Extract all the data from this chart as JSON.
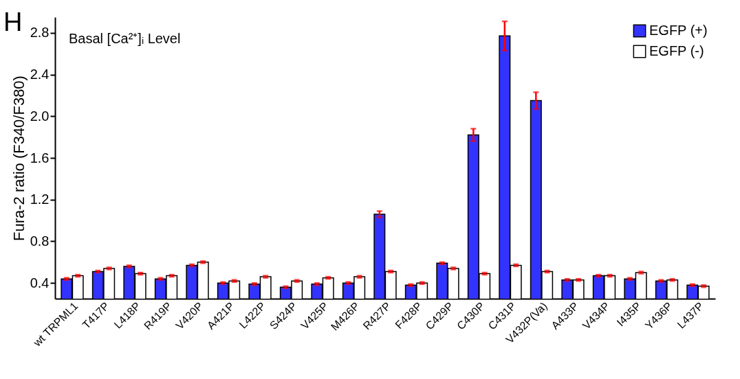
{
  "chart_data": {
    "type": "bar",
    "ylabel": "Fura-2 ratio (F340/F380)",
    "annotations": [
      "H",
      "Basal [Ca²⁺]ᵢ Level"
    ],
    "categories": [
      "wt TRPML1",
      "T417P",
      "L418P",
      "R419P",
      "V420P",
      "A421P",
      "L422P",
      "S424P",
      "V425P",
      "M426P",
      "R427P",
      "F428P",
      "C429P",
      "C430P",
      "C431P",
      "V432P(Va)",
      "A433P",
      "V434P",
      "I435P",
      "Y436P",
      "L437P"
    ],
    "series": [
      {
        "name": "EGFP (+)",
        "color": "#3333ff",
        "values": [
          0.44,
          0.51,
          0.56,
          0.44,
          0.57,
          0.4,
          0.39,
          0.36,
          0.39,
          0.4,
          1.06,
          0.38,
          0.59,
          1.82,
          2.77,
          2.15,
          0.43,
          0.47,
          0.44,
          0.42,
          0.38
        ],
        "errors": [
          0.01,
          0.01,
          0.01,
          0.01,
          0.01,
          0.01,
          0.01,
          0.01,
          0.01,
          0.01,
          0.03,
          0.01,
          0.01,
          0.06,
          0.14,
          0.08,
          0.01,
          0.01,
          0.01,
          0.01,
          0.01
        ]
      },
      {
        "name": "EGFP (-)",
        "color": "#ffffff",
        "values": [
          0.47,
          0.54,
          0.49,
          0.47,
          0.6,
          0.42,
          0.46,
          0.42,
          0.45,
          0.46,
          0.51,
          0.4,
          0.54,
          0.49,
          0.57,
          0.51,
          0.43,
          0.47,
          0.5,
          0.43,
          0.37
        ],
        "errors": [
          0.01,
          0.01,
          0.01,
          0.01,
          0.01,
          0.01,
          0.01,
          0.01,
          0.01,
          0.01,
          0.01,
          0.01,
          0.01,
          0.01,
          0.01,
          0.01,
          0.01,
          0.01,
          0.01,
          0.01,
          0.01
        ]
      }
    ],
    "ylim": [
      0.25,
      2.95
    ],
    "yticks": [
      0.4,
      0.8,
      1.2,
      1.6,
      {
        "value": 2,
        "label": "2.0"
      },
      2.4,
      2.8
    ],
    "grid": false,
    "legend": "top right"
  }
}
